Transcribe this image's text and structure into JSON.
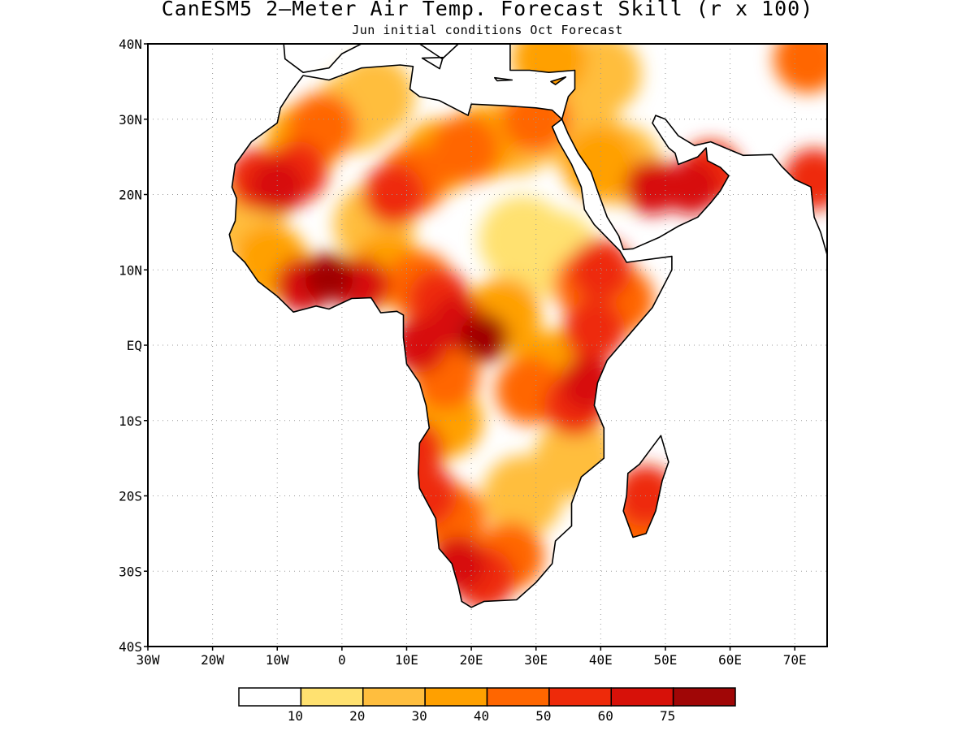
{
  "title": "CanESM5 2—Meter Air Temp. Forecast Skill (r x 100)",
  "subtitle": "Jun initial conditions  Oct Forecast",
  "lat_ticks": [
    {
      "label": "40N",
      "value": 40
    },
    {
      "label": "30N",
      "value": 30
    },
    {
      "label": "20N",
      "value": 20
    },
    {
      "label": "10N",
      "value": 10
    },
    {
      "label": "EQ",
      "value": 0
    },
    {
      "label": "10S",
      "value": -10
    },
    {
      "label": "20S",
      "value": -20
    },
    {
      "label": "30S",
      "value": -30
    },
    {
      "label": "40S",
      "value": -40
    }
  ],
  "lon_ticks": [
    {
      "label": "30W",
      "value": -30
    },
    {
      "label": "20W",
      "value": -20
    },
    {
      "label": "10W",
      "value": -10
    },
    {
      "label": "0",
      "value": 0
    },
    {
      "label": "10E",
      "value": 10
    },
    {
      "label": "20E",
      "value": 20
    },
    {
      "label": "30E",
      "value": 30
    },
    {
      "label": "40E",
      "value": 40
    },
    {
      "label": "50E",
      "value": 50
    },
    {
      "label": "60E",
      "value": 60
    },
    {
      "label": "70E",
      "value": 70
    }
  ],
  "extent": {
    "lon_min": -30,
    "lon_max": 75,
    "lat_min": -40,
    "lat_max": 40
  },
  "legend": {
    "colors": [
      "#ffffff",
      "#ffe170",
      "#ffbe3e",
      "#ffa000",
      "#ff6600",
      "#ee2a0a",
      "#d71109",
      "#a00606"
    ],
    "labels": [
      "10",
      "20",
      "30",
      "40",
      "50",
      "60",
      "75"
    ]
  },
  "regions": [
    {
      "lon": -10,
      "lat": 21,
      "level": 6
    },
    {
      "lon": -13,
      "lat": 22,
      "level": 5
    },
    {
      "lon": -7,
      "lat": 23,
      "level": 5
    },
    {
      "lon": -3,
      "lat": 29,
      "level": 4
    },
    {
      "lon": -6,
      "lat": 27,
      "level": 3
    },
    {
      "lon": 2,
      "lat": 31,
      "level": 2
    },
    {
      "lon": 5,
      "lat": 33,
      "level": 2
    },
    {
      "lon": -15,
      "lat": 17,
      "level": 2
    },
    {
      "lon": 11,
      "lat": 22,
      "level": 4
    },
    {
      "lon": 8,
      "lat": 20,
      "level": 5
    },
    {
      "lon": 15,
      "lat": 25,
      "level": 3
    },
    {
      "lon": 19,
      "lat": 26,
      "level": 4
    },
    {
      "lon": 22,
      "lat": 27,
      "level": 3
    },
    {
      "lon": 27,
      "lat": 28,
      "level": 2
    },
    {
      "lon": 30,
      "lat": 30,
      "level": 4
    },
    {
      "lon": 5,
      "lat": 16,
      "level": 2
    },
    {
      "lon": 28,
      "lat": 14,
      "level": 1
    },
    {
      "lon": 33,
      "lat": 12,
      "level": 1
    },
    {
      "lon": 37,
      "lat": 28,
      "level": 2
    },
    {
      "lon": 43,
      "lat": 24,
      "level": 2
    },
    {
      "lon": 48,
      "lat": 21,
      "level": 6
    },
    {
      "lon": 54,
      "lat": 21,
      "level": 6
    },
    {
      "lon": 57,
      "lat": 23,
      "level": 5
    },
    {
      "lon": 40,
      "lat": 24,
      "level": 3
    },
    {
      "lon": 73,
      "lat": 22,
      "level": 5
    },
    {
      "lon": 32,
      "lat": 38,
      "level": 3
    },
    {
      "lon": 40,
      "lat": 36,
      "level": 2
    },
    {
      "lon": 72,
      "lat": 38,
      "level": 4
    },
    {
      "lon": -6,
      "lat": 8,
      "level": 6
    },
    {
      "lon": -2,
      "lat": 9,
      "level": 7
    },
    {
      "lon": 3,
      "lat": 8,
      "level": 6
    },
    {
      "lon": 7,
      "lat": 10,
      "level": 3
    },
    {
      "lon": 12,
      "lat": 8,
      "level": 4
    },
    {
      "lon": -11,
      "lat": 11,
      "level": 3
    },
    {
      "lon": 40,
      "lat": 10,
      "level": 5
    },
    {
      "lon": 38,
      "lat": 8,
      "level": 4
    },
    {
      "lon": 43,
      "lat": 6,
      "level": 4
    },
    {
      "lon": 39,
      "lat": 2,
      "level": 5
    },
    {
      "lon": 38,
      "lat": -5,
      "level": 6
    },
    {
      "lon": 36,
      "lat": -8,
      "level": 5
    },
    {
      "lon": 32,
      "lat": -3,
      "level": 3
    },
    {
      "lon": 29,
      "lat": -6,
      "level": 4
    },
    {
      "lon": 22,
      "lat": 1,
      "level": 7
    },
    {
      "lon": 18,
      "lat": 3,
      "level": 6
    },
    {
      "lon": 15,
      "lat": 6,
      "level": 5
    },
    {
      "lon": 12,
      "lat": 0,
      "level": 6
    },
    {
      "lon": 16,
      "lat": -4,
      "level": 4
    },
    {
      "lon": 25,
      "lat": 4,
      "level": 3
    },
    {
      "lon": 11,
      "lat": -14,
      "level": 5
    },
    {
      "lon": 16,
      "lat": -10,
      "level": 3
    },
    {
      "lon": 13,
      "lat": -20,
      "level": 5
    },
    {
      "lon": 17,
      "lat": -23,
      "level": 4
    },
    {
      "lon": 18,
      "lat": -29,
      "level": 6
    },
    {
      "lon": 22,
      "lat": -31,
      "level": 5
    },
    {
      "lon": 26,
      "lat": -28,
      "level": 4
    },
    {
      "lon": 28,
      "lat": -20,
      "level": 2
    },
    {
      "lon": 36,
      "lat": -15,
      "level": 2
    },
    {
      "lon": 47,
      "lat": -20,
      "level": 5
    },
    {
      "lon": 46,
      "lat": -24,
      "level": 4
    }
  ]
}
